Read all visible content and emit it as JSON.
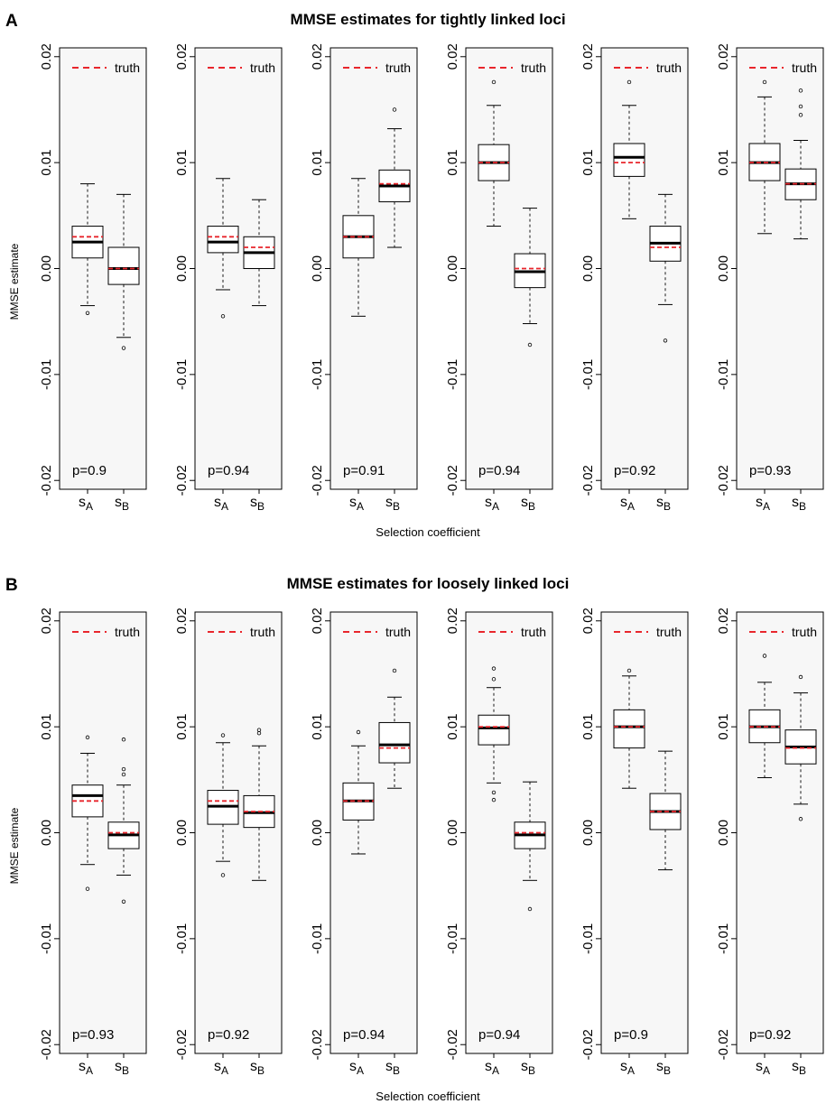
{
  "colors": {
    "truth": "#e8262c",
    "panel_bg": "#f7f7f7",
    "median": "#000000",
    "box": "#000000"
  },
  "figure": {
    "sections": [
      {
        "label": "A",
        "title": "MMSE estimates for tightly linked loci",
        "ylabel": "MMSE estimate",
        "xlabel": "Selection coefficient"
      },
      {
        "label": "B",
        "title": "MMSE estimates for loosely linked loci",
        "ylabel": "MMSE estimate",
        "xlabel": "Selection coefficient"
      }
    ]
  },
  "chart_data": [
    {
      "type": "boxplot",
      "section": "A",
      "title": "MMSE estimates for tightly linked loci",
      "ylabel": "MMSE estimate",
      "xlabel": "Selection coefficient",
      "ylim": [
        -0.02,
        0.02
      ],
      "yticks": [
        -0.02,
        -0.01,
        0.0,
        0.01,
        0.02
      ],
      "ytick_labels": [
        "-0.02",
        "-0.01",
        "0.00",
        "0.01",
        "0.02"
      ],
      "legend": {
        "label": "truth",
        "placement": "top-right"
      },
      "categories": [
        "s_A",
        "s_B"
      ],
      "panels": [
        {
          "p_label": "p=0.9",
          "boxes": [
            {
              "truth": 0.003,
              "q1": 0.001,
              "median": 0.0025,
              "q3": 0.004,
              "whisker_low": -0.0035,
              "whisker_high": 0.008,
              "outliers": [
                -0.0042
              ]
            },
            {
              "truth": 0.0,
              "q1": -0.0015,
              "median": 0.0,
              "q3": 0.002,
              "whisker_low": -0.0065,
              "whisker_high": 0.007,
              "outliers": [
                -0.0075
              ]
            }
          ]
        },
        {
          "p_label": "p=0.94",
          "boxes": [
            {
              "truth": 0.003,
              "q1": 0.0015,
              "median": 0.0025,
              "q3": 0.004,
              "whisker_low": -0.002,
              "whisker_high": 0.0085,
              "outliers": [
                -0.0045
              ]
            },
            {
              "truth": 0.002,
              "q1": 0.0,
              "median": 0.0015,
              "q3": 0.003,
              "whisker_low": -0.0035,
              "whisker_high": 0.0065,
              "outliers": []
            }
          ]
        },
        {
          "p_label": "p=0.91",
          "boxes": [
            {
              "truth": 0.003,
              "q1": 0.001,
              "median": 0.003,
              "q3": 0.005,
              "whisker_low": -0.0045,
              "whisker_high": 0.0085,
              "outliers": []
            },
            {
              "truth": 0.008,
              "q1": 0.0063,
              "median": 0.0078,
              "q3": 0.0093,
              "whisker_low": 0.002,
              "whisker_high": 0.0132,
              "outliers": [
                0.015
              ]
            }
          ]
        },
        {
          "p_label": "p=0.94",
          "boxes": [
            {
              "truth": 0.01,
              "q1": 0.0083,
              "median": 0.01,
              "q3": 0.0117,
              "whisker_low": 0.004,
              "whisker_high": 0.0154,
              "outliers": [
                0.0176
              ]
            },
            {
              "truth": 0.0,
              "q1": -0.0018,
              "median": -0.0003,
              "q3": 0.0014,
              "whisker_low": -0.0052,
              "whisker_high": 0.0057,
              "outliers": [
                -0.0072
              ]
            }
          ]
        },
        {
          "p_label": "p=0.92",
          "boxes": [
            {
              "truth": 0.01,
              "q1": 0.0087,
              "median": 0.0105,
              "q3": 0.0118,
              "whisker_low": 0.0047,
              "whisker_high": 0.0154,
              "outliers": [
                0.0176
              ]
            },
            {
              "truth": 0.002,
              "q1": 0.0007,
              "median": 0.0024,
              "q3": 0.004,
              "whisker_low": -0.0034,
              "whisker_high": 0.007,
              "outliers": [
                -0.0068
              ]
            }
          ]
        },
        {
          "p_label": "p=0.93",
          "boxes": [
            {
              "truth": 0.01,
              "q1": 0.0083,
              "median": 0.01,
              "q3": 0.0118,
              "whisker_low": 0.0033,
              "whisker_high": 0.0162,
              "outliers": [
                0.0176
              ]
            },
            {
              "truth": 0.008,
              "q1": 0.0065,
              "median": 0.008,
              "q3": 0.0094,
              "whisker_low": 0.0028,
              "whisker_high": 0.0121,
              "outliers": [
                0.0145,
                0.0153,
                0.0168
              ]
            }
          ]
        }
      ]
    },
    {
      "type": "boxplot",
      "section": "B",
      "title": "MMSE estimates for loosely linked loci",
      "ylabel": "MMSE estimate",
      "xlabel": "Selection coefficient",
      "ylim": [
        -0.02,
        0.02
      ],
      "yticks": [
        -0.02,
        -0.01,
        0.0,
        0.01,
        0.02
      ],
      "ytick_labels": [
        "-0.02",
        "-0.01",
        "0.00",
        "0.01",
        "0.02"
      ],
      "legend": {
        "label": "truth",
        "placement": "top-right"
      },
      "categories": [
        "s_A",
        "s_B"
      ],
      "panels": [
        {
          "p_label": "p=0.93",
          "boxes": [
            {
              "truth": 0.003,
              "q1": 0.0015,
              "median": 0.0035,
              "q3": 0.0045,
              "whisker_low": -0.003,
              "whisker_high": 0.0075,
              "outliers": [
                -0.0053,
                0.009
              ]
            },
            {
              "truth": 0.0,
              "q1": -0.0015,
              "median": -0.0002,
              "q3": 0.001,
              "whisker_low": -0.004,
              "whisker_high": 0.0045,
              "outliers": [
                -0.0065,
                0.0055,
                0.006,
                0.0088
              ]
            }
          ]
        },
        {
          "p_label": "p=0.92",
          "boxes": [
            {
              "truth": 0.003,
              "q1": 0.0008,
              "median": 0.0025,
              "q3": 0.004,
              "whisker_low": -0.0027,
              "whisker_high": 0.0085,
              "outliers": [
                -0.004,
                0.0092
              ]
            },
            {
              "truth": 0.002,
              "q1": 0.0005,
              "median": 0.0019,
              "q3": 0.0035,
              "whisker_low": -0.0045,
              "whisker_high": 0.0082,
              "outliers": [
                0.0094,
                0.0097
              ]
            }
          ]
        },
        {
          "p_label": "p=0.94",
          "boxes": [
            {
              "truth": 0.003,
              "q1": 0.0012,
              "median": 0.003,
              "q3": 0.0047,
              "whisker_low": -0.002,
              "whisker_high": 0.0082,
              "outliers": [
                0.0095
              ]
            },
            {
              "truth": 0.008,
              "q1": 0.0066,
              "median": 0.0083,
              "q3": 0.0104,
              "whisker_low": 0.0042,
              "whisker_high": 0.0128,
              "outliers": [
                0.0153
              ]
            }
          ]
        },
        {
          "p_label": "p=0.94",
          "boxes": [
            {
              "truth": 0.01,
              "q1": 0.0083,
              "median": 0.0099,
              "q3": 0.0111,
              "whisker_low": 0.0047,
              "whisker_high": 0.0137,
              "outliers": [
                0.0145,
                0.0155,
                0.0038,
                0.0031
              ]
            },
            {
              "truth": 0.0,
              "q1": -0.0015,
              "median": -0.0002,
              "q3": 0.001,
              "whisker_low": -0.0045,
              "whisker_high": 0.0048,
              "outliers": [
                -0.0072
              ]
            }
          ]
        },
        {
          "p_label": "p=0.9",
          "boxes": [
            {
              "truth": 0.01,
              "q1": 0.008,
              "median": 0.01,
              "q3": 0.0116,
              "whisker_low": 0.0042,
              "whisker_high": 0.0148,
              "outliers": [
                0.0153
              ]
            },
            {
              "truth": 0.002,
              "q1": 0.0003,
              "median": 0.002,
              "q3": 0.0037,
              "whisker_low": -0.0035,
              "whisker_high": 0.0077,
              "outliers": []
            }
          ]
        },
        {
          "p_label": "p=0.92",
          "boxes": [
            {
              "truth": 0.01,
              "q1": 0.0085,
              "median": 0.01,
              "q3": 0.0116,
              "whisker_low": 0.0052,
              "whisker_high": 0.0142,
              "outliers": [
                0.0167
              ]
            },
            {
              "truth": 0.008,
              "q1": 0.0065,
              "median": 0.0081,
              "q3": 0.0097,
              "whisker_low": 0.0027,
              "whisker_high": 0.0132,
              "outliers": [
                0.0147,
                0.0013
              ]
            }
          ]
        }
      ]
    }
  ]
}
